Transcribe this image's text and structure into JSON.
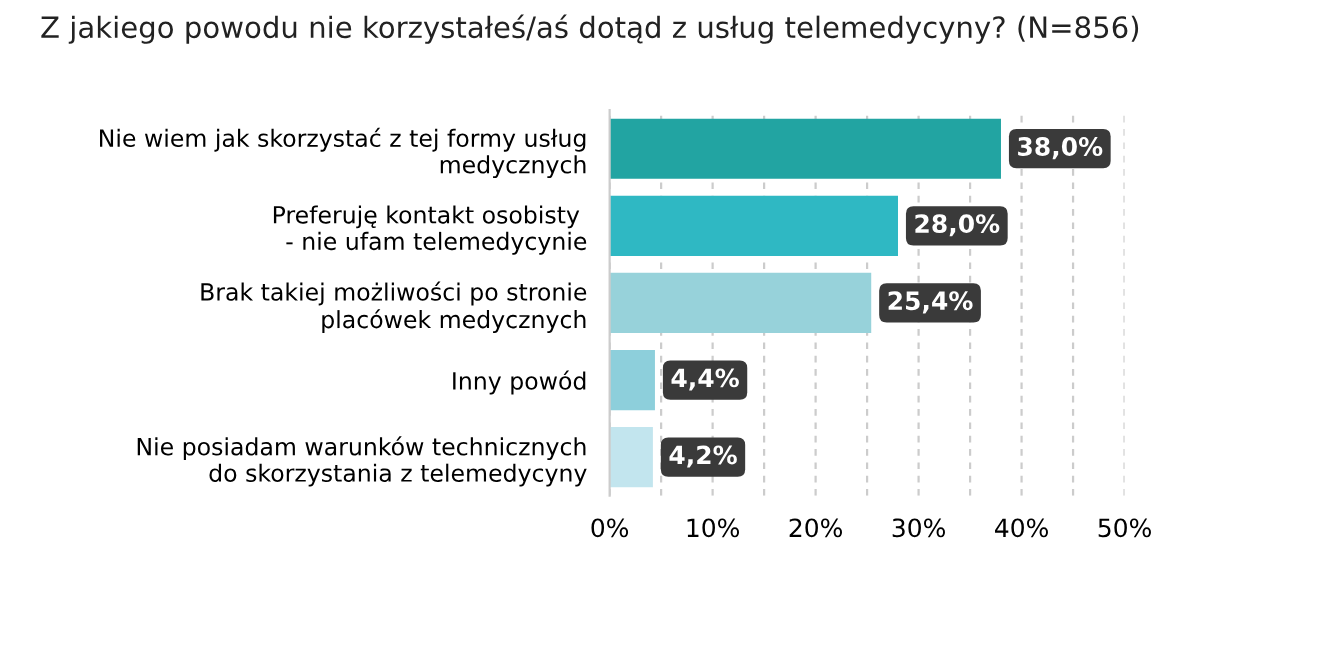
{
  "chart_data": {
    "type": "bar",
    "orientation": "horizontal",
    "title": "Z jakiego powodu nie korzystałeś/aś dotąd z usług telemedycyny? (N=856)",
    "categories": [
      "Nie wiem jak skorzystać z tej formy usług\nmedycznych",
      "Preferuję kontakt osobisty \n- nie ufam telemedycynie",
      "Brak takiej możliwości po stronie\nplacówek medycznych",
      "Inny powód",
      "Nie posiadam warunków technicznych\ndo skorzystania z telemedycyny"
    ],
    "values": [
      38.0,
      28.0,
      25.4,
      4.4,
      4.2
    ],
    "colors": [
      "#22a4a2",
      "#2fb8c3",
      "#97d2da",
      "#8dcfdb",
      "#c2e5ee"
    ],
    "value_labels": [
      "38,0%",
      "28,0%",
      "25,4%",
      "4,4%",
      "4,2%"
    ],
    "xlim": [
      0,
      50
    ],
    "xticks": [
      {
        "value": 0,
        "label": "0%"
      },
      {
        "value": 5,
        "label": null
      },
      {
        "value": 10,
        "label": "10%"
      },
      {
        "value": 15,
        "label": null
      },
      {
        "value": 20,
        "label": "20%"
      },
      {
        "value": 25,
        "label": null
      },
      {
        "value": 30,
        "label": "30%"
      },
      {
        "value": 35,
        "label": null
      },
      {
        "value": 40,
        "label": "40%"
      },
      {
        "value": 45,
        "label": null
      },
      {
        "value": 50,
        "label": "50%"
      }
    ],
    "grid": "x",
    "legend": false
  }
}
